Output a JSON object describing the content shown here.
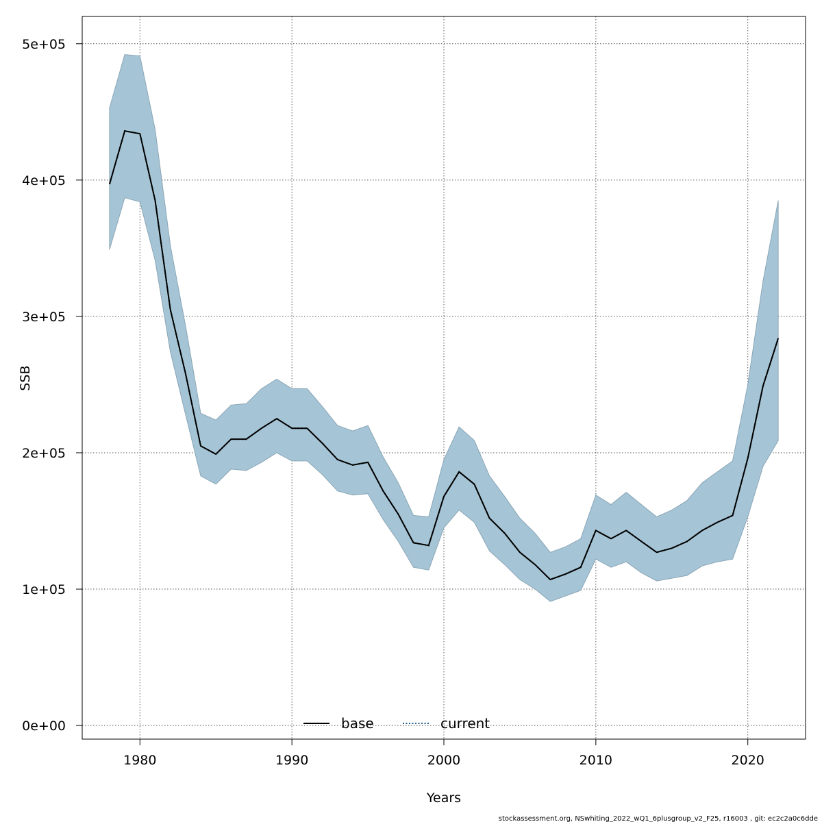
{
  "chart_data": {
    "type": "area",
    "xlabel": "Years",
    "ylabel": "SSB",
    "xlim": [
      1976.2,
      2023.8
    ],
    "ylim": [
      -10000,
      520000
    ],
    "x_ticks": [
      1980,
      1990,
      2000,
      2010,
      2020
    ],
    "x_tick_labels": [
      "1980",
      "1990",
      "2000",
      "2010",
      "2020"
    ],
    "y_ticks": [
      0,
      100000,
      200000,
      300000,
      400000,
      500000
    ],
    "y_tick_labels": [
      "0e+00",
      "1e+05",
      "2e+05",
      "3e+05",
      "4e+05",
      "5e+05"
    ],
    "grid": true,
    "legend_position": "bottom-center",
    "legend": [
      {
        "label": "base",
        "line": "solid",
        "color": "#000000"
      },
      {
        "label": "current",
        "line": "dotted",
        "color": "#1f5f8f"
      }
    ],
    "band_color": "#a5c4d5",
    "years": [
      1978,
      1979,
      1980,
      1981,
      1982,
      1983,
      1984,
      1985,
      1986,
      1987,
      1988,
      1989,
      1990,
      1991,
      1992,
      1993,
      1994,
      1995,
      1996,
      1997,
      1998,
      1999,
      2000,
      2001,
      2002,
      2003,
      2004,
      2005,
      2006,
      2007,
      2008,
      2009,
      2010,
      2011,
      2012,
      2013,
      2014,
      2015,
      2016,
      2017,
      2018,
      2019,
      2020,
      2021,
      2022
    ],
    "series": [
      {
        "name": "base",
        "values": [
          397000,
          436000,
          434000,
          385000,
          305000,
          258000,
          205000,
          199000,
          210000,
          210000,
          218000,
          225000,
          218000,
          218000,
          207000,
          195000,
          191000,
          193000,
          172000,
          155000,
          134000,
          132000,
          168000,
          186000,
          177000,
          152000,
          141000,
          127000,
          118000,
          107000,
          111000,
          116000,
          143000,
          137000,
          143000,
          135000,
          127000,
          130000,
          135000,
          143000,
          149000,
          154000,
          196000,
          249000,
          284000
        ]
      },
      {
        "name": "current",
        "values": [
          397000,
          436000,
          434000,
          385000,
          305000,
          258000,
          205000,
          199000,
          210000,
          210000,
          218000,
          225000,
          218000,
          218000,
          207000,
          195000,
          191000,
          193000,
          172000,
          155000,
          134000,
          132000,
          168000,
          186000,
          177000,
          152000,
          141000,
          127000,
          118000,
          107000,
          111000,
          116000,
          143000,
          137000,
          143000,
          135000,
          127000,
          130000,
          135000,
          143000,
          149000,
          154000,
          196000,
          249000,
          284000
        ]
      }
    ],
    "band_upper": [
      453000,
      492000,
      491000,
      437000,
      352000,
      293000,
      229000,
      224000,
      235000,
      236000,
      247000,
      254000,
      247000,
      247000,
      234000,
      220000,
      216000,
      220000,
      197000,
      178000,
      154000,
      153000,
      195000,
      219000,
      209000,
      183000,
      168000,
      152000,
      141000,
      127000,
      131000,
      137000,
      169000,
      162000,
      171000,
      162000,
      153000,
      158000,
      165000,
      178000,
      186000,
      194000,
      250000,
      326000,
      385000
    ],
    "band_lower": [
      349000,
      387000,
      384000,
      341000,
      274000,
      228000,
      183000,
      177000,
      188000,
      187000,
      193000,
      200000,
      194000,
      194000,
      184000,
      172000,
      169000,
      170000,
      151000,
      135000,
      116000,
      114000,
      145000,
      158000,
      149000,
      128000,
      118000,
      107000,
      100000,
      91000,
      95000,
      99000,
      122000,
      116000,
      120000,
      112000,
      106000,
      108000,
      110000,
      117000,
      120000,
      122000,
      153000,
      190000,
      209000
    ]
  },
  "footer": "stockassessment.org, NSwhiting_2022_wQ1_6plusgroup_v2_F25, r16003 , git: ec2c2a0c6dde"
}
